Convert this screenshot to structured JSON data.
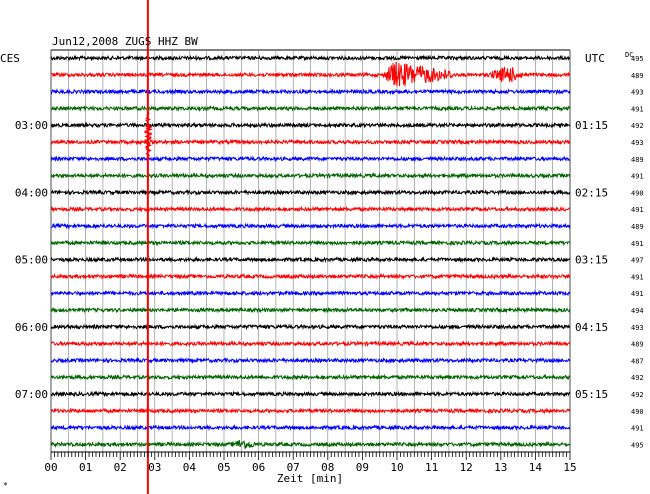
{
  "chart_data": {
    "type": "line",
    "title": "Jun12,2008   ZUGS HHZ BW",
    "left_label": "CES",
    "right_label": "UTC",
    "dc_label": "DC",
    "xlabel": "Zeit [min]",
    "xlim": [
      0,
      15
    ],
    "x_ticks": [
      "00",
      "01",
      "02",
      "03",
      "04",
      "05",
      "06",
      "07",
      "08",
      "09",
      "10",
      "11",
      "12",
      "13",
      "14",
      "15"
    ],
    "left_time_labels": [
      {
        "row": 4,
        "text": "03:00"
      },
      {
        "row": 8,
        "text": "04:00"
      },
      {
        "row": 12,
        "text": "05:00"
      },
      {
        "row": 16,
        "text": "06:00"
      },
      {
        "row": 20,
        "text": "07:00"
      }
    ],
    "right_time_labels": [
      {
        "row": 4,
        "text": "01:15"
      },
      {
        "row": 8,
        "text": "02:15"
      },
      {
        "row": 12,
        "text": "03:15"
      },
      {
        "row": 16,
        "text": "04:15"
      },
      {
        "row": 20,
        "text": "05:15"
      }
    ],
    "dc_values": [
      "495",
      "489",
      "493",
      "491",
      "492",
      "493",
      "489",
      "491",
      "490",
      "491",
      "489",
      "491",
      "497",
      "491",
      "491",
      "494",
      "493",
      "489",
      "487",
      "492",
      "492",
      "490",
      "491",
      "495"
    ],
    "trace_colors": [
      "#000000",
      "#ff0000",
      "#0000ff",
      "#006400"
    ],
    "marker": {
      "minute": 2.8,
      "color": "#ff0000"
    },
    "events": [
      {
        "row": 1,
        "start_min": 9.6,
        "end_min": 11.6,
        "peak_min": 9.9,
        "amplitude": 12
      },
      {
        "row": 1,
        "start_min": 12.6,
        "end_min": 13.6,
        "peak_min": 13.2,
        "amplitude": 8
      },
      {
        "row": 23,
        "start_min": 5.2,
        "end_min": 5.9,
        "peak_min": 5.5,
        "amplitude": 4
      }
    ]
  },
  "footer_mark": "*"
}
